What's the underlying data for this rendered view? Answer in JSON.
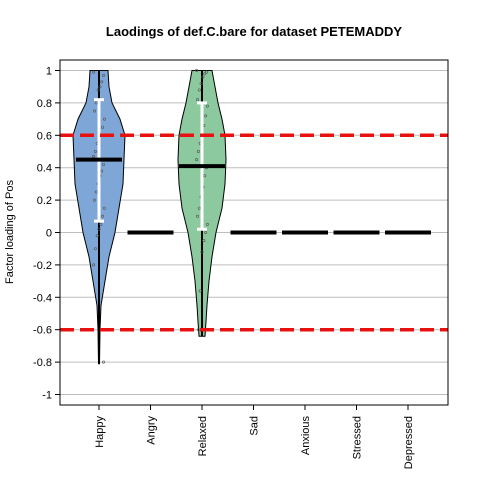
{
  "chart_data": {
    "type": "violin",
    "title": "Laodings of def.C.bare for dataset PETEMADDY",
    "xlabel": "",
    "ylabel": "Factor loading of Pos",
    "ylim": [
      -1.05,
      1.05
    ],
    "yticks": [
      "-1",
      "-0.8",
      "-0.6",
      "-0.4",
      "-0.2",
      "0",
      "0.2",
      "0.4",
      "0.6",
      "0.8",
      "1"
    ],
    "grid": true,
    "thresholds": [
      0.6,
      -0.6
    ],
    "categories": [
      "Happy",
      "Angry",
      "Relaxed",
      "Sad",
      "Anxious",
      "Stressed",
      "Depressed"
    ],
    "series": [
      {
        "category": "Happy",
        "color": "#7ea6d6",
        "median": 0.45,
        "whisker": [
          0.07,
          0.82
        ],
        "range": [
          -0.81,
          1.0
        ],
        "density": [
          [
            -0.81,
            0.005
          ],
          [
            -0.6,
            0.01
          ],
          [
            -0.45,
            0.02
          ],
          [
            -0.3,
            0.06
          ],
          [
            -0.15,
            0.1
          ],
          [
            0.0,
            0.16
          ],
          [
            0.15,
            0.2
          ],
          [
            0.3,
            0.24
          ],
          [
            0.45,
            0.25
          ],
          [
            0.6,
            0.26
          ],
          [
            0.7,
            0.21
          ],
          [
            0.8,
            0.13
          ],
          [
            0.9,
            0.1
          ],
          [
            1.0,
            0.09
          ]
        ],
        "points": [
          0.99,
          0.97,
          0.93,
          0.9,
          0.88,
          0.8,
          0.75,
          0.7,
          0.65,
          0.6,
          0.58,
          0.55,
          0.5,
          0.47,
          0.42,
          0.38,
          0.35,
          0.3,
          0.25,
          0.2,
          0.15,
          0.1,
          0.05,
          0.02,
          -0.02,
          -0.1,
          -0.2,
          -0.8
        ]
      },
      {
        "category": "Angry",
        "color": "#7ea6d6",
        "median": 0,
        "whisker": null,
        "range": null,
        "density": [],
        "points": []
      },
      {
        "category": "Relaxed",
        "color": "#8cc99f",
        "median": 0.41,
        "whisker": [
          0.02,
          0.8
        ],
        "range": [
          -0.64,
          1.0
        ],
        "density": [
          [
            -0.64,
            0.03
          ],
          [
            -0.55,
            0.04
          ],
          [
            -0.45,
            0.05
          ],
          [
            -0.3,
            0.07
          ],
          [
            -0.15,
            0.1
          ],
          [
            0.0,
            0.14
          ],
          [
            0.15,
            0.2
          ],
          [
            0.3,
            0.23
          ],
          [
            0.45,
            0.24
          ],
          [
            0.6,
            0.23
          ],
          [
            0.7,
            0.2
          ],
          [
            0.8,
            0.16
          ],
          [
            0.9,
            0.13
          ],
          [
            1.0,
            0.1
          ]
        ],
        "points": [
          1.0,
          0.99,
          0.98,
          0.96,
          0.92,
          0.88,
          0.82,
          0.78,
          0.72,
          0.66,
          0.6,
          0.55,
          0.5,
          0.45,
          0.4,
          0.35,
          0.28,
          0.22,
          0.15,
          0.1,
          0.05,
          0.0,
          -0.05,
          -0.12,
          -0.36,
          -0.6
        ]
      },
      {
        "category": "Sad",
        "median": 0,
        "whisker": null,
        "range": null,
        "density": [],
        "points": []
      },
      {
        "category": "Anxious",
        "median": 0,
        "whisker": null,
        "range": null,
        "density": [],
        "points": []
      },
      {
        "category": "Stressed",
        "median": 0,
        "whisker": null,
        "range": null,
        "density": [],
        "points": []
      },
      {
        "category": "Depressed",
        "median": 0,
        "whisker": null,
        "range": null,
        "density": [],
        "points": []
      }
    ]
  },
  "colors": {
    "threshold": "#e8110f",
    "grid": "#bebebe",
    "median": "#000000",
    "whisker": "#ffffff"
  }
}
